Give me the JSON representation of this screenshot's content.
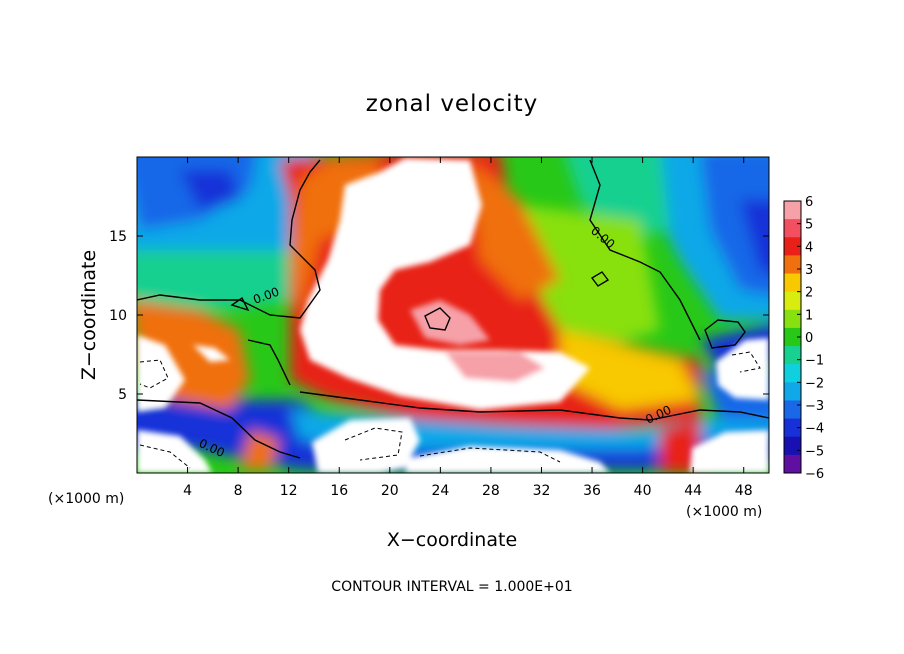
{
  "chart_data": {
    "type": "heatmap",
    "title": "zonal velocity",
    "xlabel": "X−coordinate",
    "ylabel": "Z−coordinate",
    "x_unit": "(×1000 m)",
    "x_unit_right": "(×1000 m)",
    "x_ticks": [
      "4",
      "8",
      "12",
      "16",
      "20",
      "24",
      "28",
      "32",
      "36",
      "40",
      "44",
      "48"
    ],
    "y_ticks": [
      "5",
      "10",
      "15"
    ],
    "xlim": [
      0,
      50
    ],
    "ylim": [
      0,
      20
    ],
    "contour_label": "0.00",
    "contour_interval_text": "CONTOUR INTERVAL = 1.000E+01",
    "colorbar": {
      "ticks": [
        "6",
        "5",
        "4",
        "3",
        "2",
        "1",
        "0",
        "−1",
        "−2",
        "−3",
        "−4",
        "−5",
        "−6"
      ],
      "range": [
        -6,
        6
      ],
      "colors": [
        "#f6a0a8",
        "#f25060",
        "#e82018",
        "#f07010",
        "#f8c800",
        "#d8ec10",
        "#88e010",
        "#28c818",
        "#18d090",
        "#10d0e0",
        "#10a8e8",
        "#1868e8",
        "#1830d8",
        "#1810b0",
        "#6010a0"
      ]
    },
    "grid": false
  }
}
